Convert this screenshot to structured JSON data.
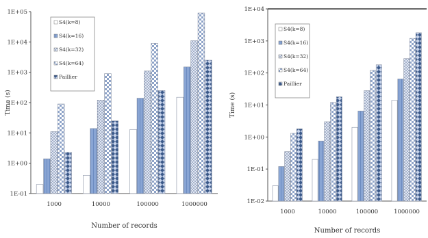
{
  "chart_data": [
    {
      "type": "bar",
      "yscale": "log",
      "ylabel": "Time (s)",
      "xlabel": "Number of records",
      "categories": [
        "1000",
        "10000",
        "100000",
        "1000000"
      ],
      "yticks": [
        "1E-01",
        "1E+00",
        "1E+01",
        "1E+02",
        "1E+03",
        "1E+04",
        "1E+05"
      ],
      "ylim": [
        0.1,
        100000
      ],
      "legend": "top-left",
      "series": [
        {
          "name": "S4(k=8)",
          "values": [
            0.2,
            0.4,
            13,
            150
          ]
        },
        {
          "name": "S4(k=16)",
          "values": [
            1.4,
            14,
            140,
            1500
          ]
        },
        {
          "name": "S4(k=32)",
          "values": [
            11,
            120,
            1100,
            11000
          ]
        },
        {
          "name": "S4(k=64)",
          "values": [
            90,
            900,
            9000,
            90000
          ]
        },
        {
          "name": "Paillier",
          "values": [
            2.3,
            25,
            250,
            2500
          ]
        }
      ]
    },
    {
      "type": "bar",
      "yscale": "log",
      "ylabel": "Time (s)",
      "xlabel": "Number of records",
      "categories": [
        "1000",
        "10000",
        "100000",
        "1000000"
      ],
      "yticks": [
        "1E-02",
        "1E-01",
        "1E+00",
        "1E+01",
        "1E+02",
        "1E+03",
        "1E+04"
      ],
      "ylim": [
        0.01,
        10000
      ],
      "legend": "top-left",
      "series": [
        {
          "name": "S4(k=8)",
          "values": [
            0.03,
            0.2,
            2,
            14
          ]
        },
        {
          "name": "S4(k=16)",
          "values": [
            0.12,
            0.75,
            6.5,
            65
          ]
        },
        {
          "name": "S4(k=32)",
          "values": [
            0.35,
            3,
            28,
            280
          ]
        },
        {
          "name": "S4(k=64)",
          "values": [
            1.3,
            12,
            120,
            1200
          ]
        },
        {
          "name": "Paillier",
          "values": [
            1.8,
            18,
            180,
            1800
          ]
        }
      ]
    }
  ],
  "colors": {
    "s4_k8": "#ffffff",
    "s4_k16": "#7f9fcf",
    "s4_k32": "#d6dff0",
    "s4_k64": "#a8b8d8",
    "paillier": "#4c6e9c",
    "axis": "#555555"
  }
}
